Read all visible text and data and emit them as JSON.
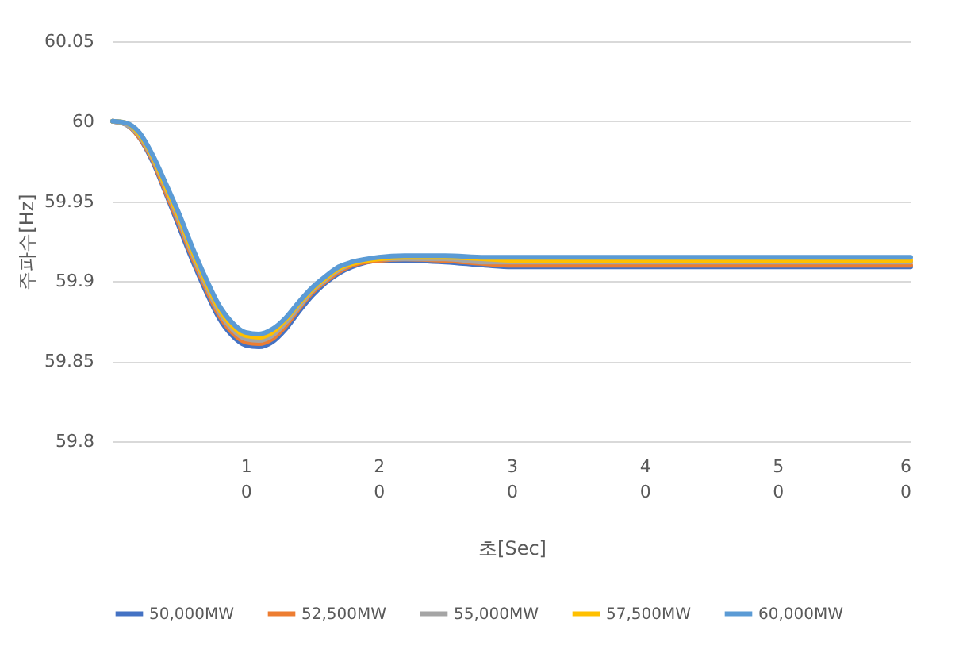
{
  "chart_data": {
    "type": "line",
    "xlabel": "초[Sec]",
    "ylabel": "주파수[Hz]",
    "x": [
      0,
      1,
      2,
      3,
      4,
      5,
      6,
      7,
      8,
      9,
      10,
      11,
      12,
      13,
      14,
      15,
      16,
      17,
      18,
      20,
      22,
      25,
      28,
      30,
      60
    ],
    "series": [
      {
        "name": "50,000MW",
        "color": "#4472c4",
        "values": [
          60.0,
          59.998,
          59.99,
          59.975,
          59.955,
          59.934,
          59.913,
          59.894,
          59.877,
          59.866,
          59.86,
          59.859,
          59.862,
          59.87,
          59.881,
          59.891,
          59.899,
          59.905,
          59.909,
          59.913,
          59.913,
          59.912,
          59.91,
          59.909,
          59.909
        ]
      },
      {
        "name": "52,500MW",
        "color": "#ed7d31",
        "values": [
          60.0,
          59.998,
          59.99,
          59.976,
          59.956,
          59.936,
          59.915,
          59.896,
          59.879,
          59.868,
          59.862,
          59.861,
          59.864,
          59.872,
          59.883,
          59.893,
          59.9,
          59.906,
          59.91,
          59.913,
          59.914,
          59.913,
          59.911,
          59.91,
          59.91
        ]
      },
      {
        "name": "55,000MW",
        "color": "#a5a5a5",
        "values": [
          60.0,
          59.998,
          59.991,
          59.977,
          59.958,
          59.938,
          59.917,
          59.898,
          59.881,
          59.87,
          59.864,
          59.863,
          59.866,
          59.874,
          59.884,
          59.894,
          59.901,
          59.907,
          59.911,
          59.914,
          59.914,
          59.914,
          59.912,
          59.912,
          59.912
        ]
      },
      {
        "name": "57,500MW",
        "color": "#ffc000",
        "values": [
          60.0,
          59.999,
          59.992,
          59.978,
          59.959,
          59.94,
          59.919,
          59.9,
          59.883,
          59.872,
          59.866,
          59.865,
          59.868,
          59.876,
          59.886,
          59.895,
          59.902,
          59.908,
          59.911,
          59.914,
          59.915,
          59.915,
          59.914,
          59.913,
          59.913
        ]
      },
      {
        "name": "60,000MW",
        "color": "#5b9bd5",
        "values": [
          60.0,
          59.999,
          59.993,
          59.979,
          59.961,
          59.942,
          59.921,
          59.902,
          59.885,
          59.874,
          59.868,
          59.867,
          59.87,
          59.877,
          59.887,
          59.896,
          59.903,
          59.909,
          59.912,
          59.915,
          59.916,
          59.916,
          59.915,
          59.915,
          59.915
        ]
      }
    ],
    "xlim": [
      0,
      60
    ],
    "xticks": [
      10,
      20,
      30,
      40,
      50,
      60
    ],
    "ylim": [
      59.8,
      60.05
    ],
    "yticks": [
      59.8,
      59.85,
      59.9,
      59.95,
      60,
      60.05
    ],
    "grid": "y",
    "legend": "bottom",
    "marker": "none",
    "line_style": "solid"
  }
}
